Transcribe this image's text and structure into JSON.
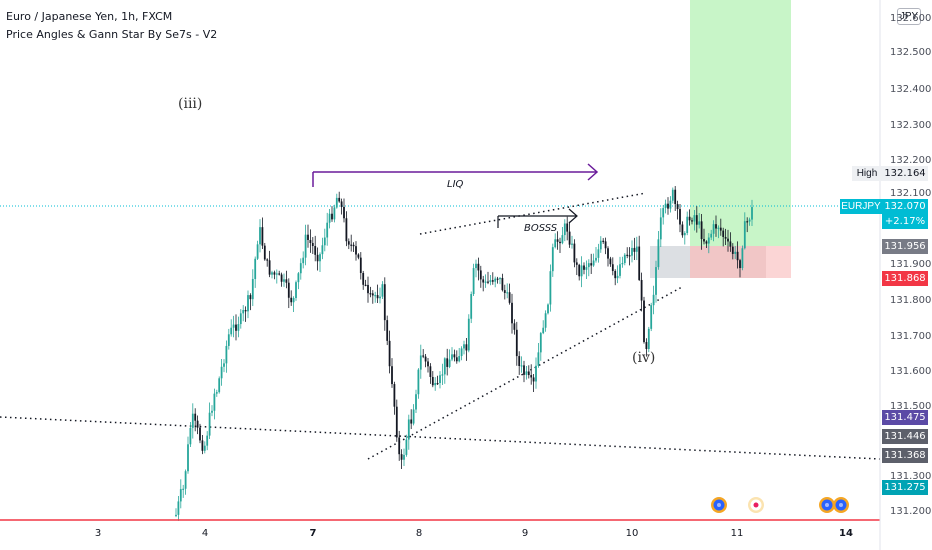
{
  "header": {
    "symbol_line": "Euro / Japanese Yen, 1h, FXCM",
    "indicator_line": "Price Angles & Gann Star By Se7s - V2"
  },
  "currency_button": "JPY",
  "colors": {
    "up": "#26a69a",
    "down": "#131722",
    "accent_teal": "#00bcd4",
    "bottom_line": "#f23645",
    "liq_arrow": "#6a1b9a",
    "target_zone": "#c8f5c8",
    "stop_zone": "#f1c6c6",
    "entry_zone": "#dcdfe3"
  },
  "price_axis": {
    "labels": [
      "132.600",
      "132.500",
      "132.400",
      "132.300",
      "132.200",
      "132.100",
      "131.900",
      "131.800",
      "131.700",
      "131.600",
      "131.500",
      "131.300",
      "131.200"
    ],
    "high_label": "High",
    "high_value": "132.164",
    "symbol_tag": "EURJPY",
    "current_price": "132.070",
    "change": "+2.17%",
    "tag_131956": "131.956",
    "tag_131868": "131.868",
    "tag_131475": "131.475",
    "tag_131446": "131.446",
    "tag_131368": "131.368",
    "tag_131275": "131.275"
  },
  "time_axis": {
    "labels": [
      "3",
      "4",
      "7",
      "8",
      "9",
      "10",
      "11",
      "14"
    ]
  },
  "annotations": {
    "wave_iii": "(iii)",
    "wave_iv": "(iv)",
    "liq": "LIQ",
    "bosss": "BOSSS"
  },
  "event_icons": [
    "calendar-event-icon",
    "calendar-event-icon",
    "calendar-event-icon",
    "calendar-event-icon"
  ]
}
